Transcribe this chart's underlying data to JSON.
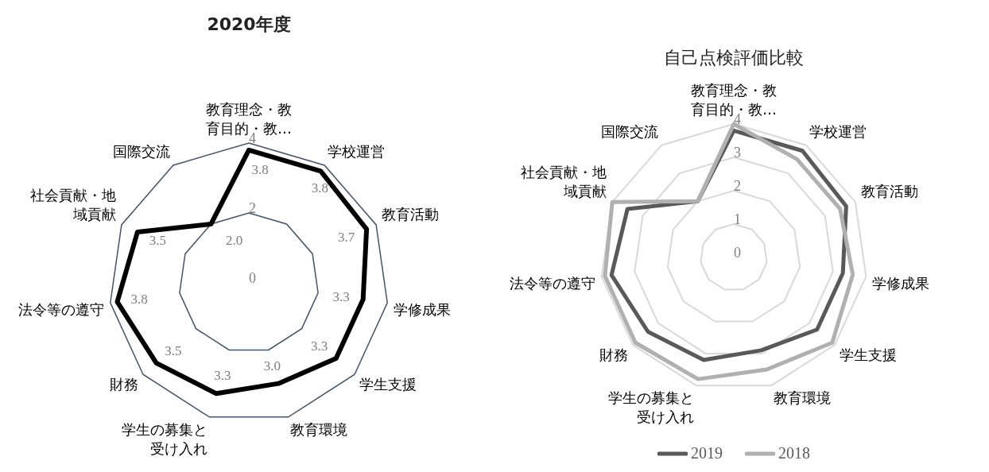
{
  "chart_data": [
    {
      "type": "radar",
      "title": "2020年度",
      "categories": [
        "教育理念・教育目的・教…",
        "学校運営",
        "教育活動",
        "学修成果",
        "学生支援",
        "教育環境",
        "学生の募集と受け入れ",
        "財務",
        "法令等の遵守",
        "社会貢献・地域貢献",
        "国際交流"
      ],
      "series": [
        {
          "color": "#000000",
          "values": [
            3.8,
            3.8,
            3.7,
            3.3,
            3.3,
            3.0,
            3.3,
            3.5,
            3.8,
            3.5,
            2.0
          ],
          "value_labels": [
            "3.8",
            "3.8",
            "3.7",
            "3.3",
            "3.3",
            "3.0",
            "3.3",
            "3.5",
            "3.8",
            "3.5",
            "2.0"
          ]
        }
      ],
      "ylim": [
        0,
        4
      ],
      "yticks": [
        0,
        2,
        4
      ],
      "grid": true,
      "legend": false
    },
    {
      "type": "radar",
      "title": "自己点検評価比較",
      "categories": [
        "教育理念・教育目的・教…",
        "学校運営",
        "教育活動",
        "学修成果",
        "学生支援",
        "教育環境",
        "学生の募集と受け入れ",
        "財務",
        "法令等の遵守",
        "社会貢献・地域貢献",
        "国際交流"
      ],
      "series": [
        {
          "name": "2019",
          "color": "#595959",
          "values": [
            3.8,
            3.8,
            3.7,
            3.3,
            3.3,
            2.9,
            3.2,
            3.4,
            3.7,
            3.5,
            2.0
          ]
        },
        {
          "name": "2018",
          "color": "#b0b0b0",
          "values": [
            4.0,
            3.5,
            3.5,
            3.6,
            3.9,
            3.5,
            3.8,
            3.9,
            3.9,
            4.0,
            2.0
          ]
        }
      ],
      "ylim": [
        0,
        4
      ],
      "yticks": [
        0,
        1,
        2,
        3,
        4
      ],
      "grid": true,
      "legend": "bottom"
    }
  ]
}
